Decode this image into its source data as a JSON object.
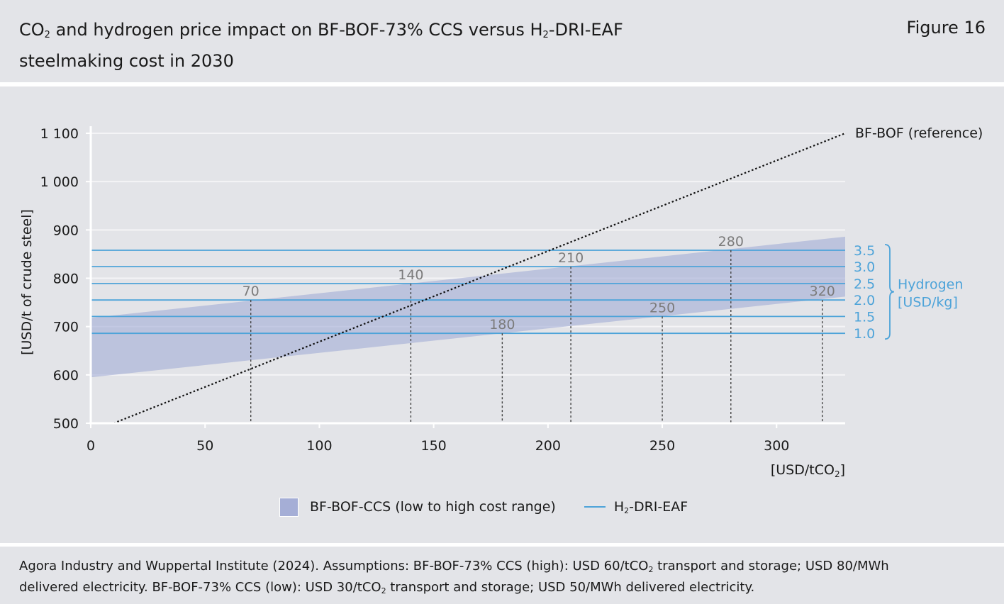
{
  "header": {
    "title_line1_a": "CO",
    "title_line1_sub": "2",
    "title_line1_b": " and hydrogen price impact on BF-BOF-73% CCS versus H",
    "title_line1_sub2": "2",
    "title_line1_c": "-DRI-EAF",
    "title_line2": "steelmaking cost in 2030",
    "figure_number": "Figure 16"
  },
  "footer": {
    "line1_a": "Agora Industry and Wuppertal Institute (2024). Assumptions: BF-BOF-73% CCS (high): USD 60/tCO",
    "line1_sub": "2",
    "line1_b": " transport and storage; USD 80/MWh",
    "line2_a": "delivered electricity. BF-BOF-73% CCS (low): USD 30/tCO",
    "line2_sub": "2",
    "line2_b": " transport and storage; USD 50/MWh delivered electricity."
  },
  "legend": {
    "band_label": "BF-BOF-CCS (low to high cost range)",
    "line_label_a": "H",
    "line_label_sub": "2",
    "line_label_b": "-DRI-EAF"
  },
  "chart_data": {
    "type": "line",
    "ylabel": "[USD/t of crude steel]",
    "xlabel_a": "[USD/tCO",
    "xlabel_sub": "2",
    "xlabel_b": "]",
    "xlim": [
      0,
      330
    ],
    "ylim": [
      500,
      1100
    ],
    "x_ticks": [
      0,
      50,
      100,
      150,
      200,
      250,
      300
    ],
    "y_ticks": [
      500,
      600,
      700,
      800,
      900,
      1000,
      1100
    ],
    "y_tick_labels": [
      "500",
      "600",
      "700",
      "800",
      "900",
      "1 000",
      "1 100"
    ],
    "reference_line": {
      "name": "BF-BOF (reference)",
      "x": [
        10,
        330
      ],
      "y": [
        500,
        1100
      ],
      "color": "#111111"
    },
    "band": {
      "name": "BF-BOF-CCS (low to high cost range)",
      "low": [
        [
          0,
          595
        ],
        [
          330,
          762
        ]
      ],
      "high": [
        [
          0,
          718
        ],
        [
          330,
          886
        ]
      ],
      "color": "#a5aed6"
    },
    "h2_series": {
      "name": "H2-DRI-EAF",
      "color": "#4da3d9",
      "hydrogen_prices": [
        "3.5",
        "3.0",
        "2.5",
        "2.0",
        "1.5",
        "1.0"
      ],
      "costs": [
        858,
        824,
        789,
        755,
        721,
        686
      ]
    },
    "hydrogen_group_label": [
      "Hydrogen",
      "[USD/kg]"
    ],
    "breakeven_points": [
      {
        "x": 70,
        "y": 755,
        "label": "70"
      },
      {
        "x": 140,
        "y": 789,
        "label": "140"
      },
      {
        "x": 180,
        "y": 686,
        "label": "180"
      },
      {
        "x": 210,
        "y": 824,
        "label": "210"
      },
      {
        "x": 250,
        "y": 721,
        "label": "250"
      },
      {
        "x": 280,
        "y": 858,
        "label": "280"
      },
      {
        "x": 320,
        "y": 755,
        "label": "320"
      }
    ]
  }
}
